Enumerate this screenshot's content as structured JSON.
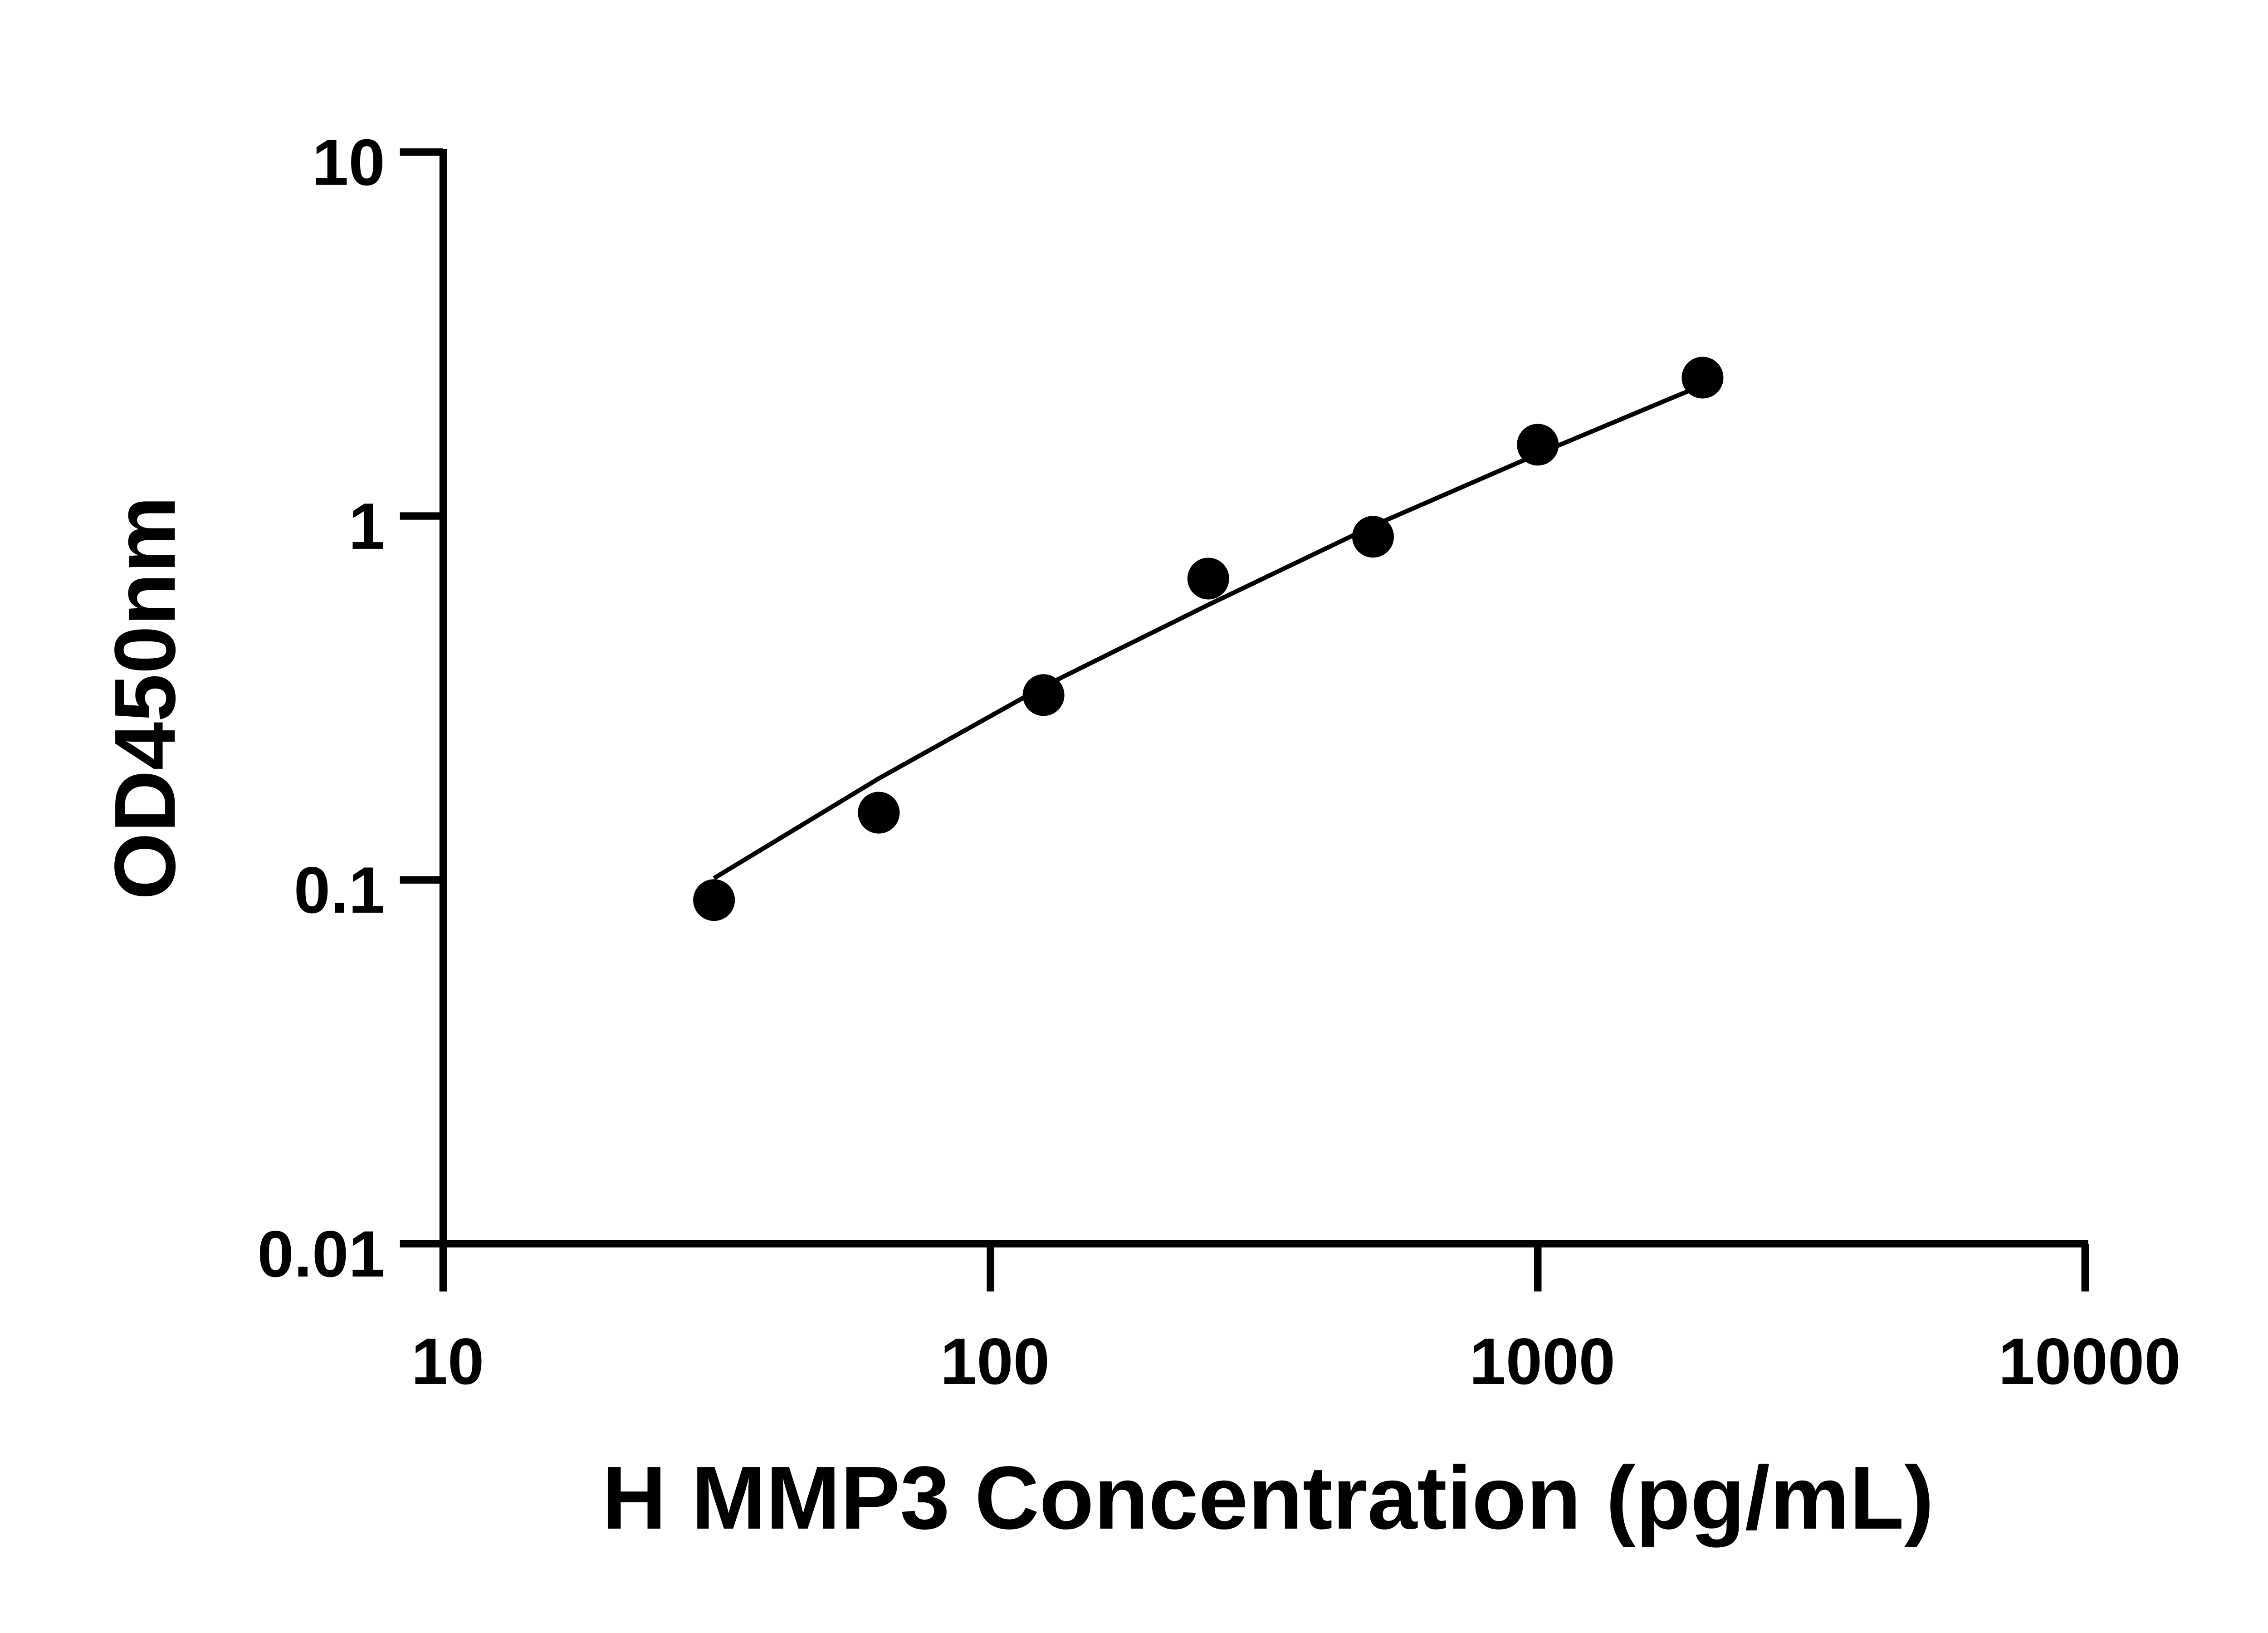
{
  "chart_data": {
    "type": "scatter",
    "title": "",
    "xlabel": "H MMP3 Concentration (pg/mL)",
    "ylabel": "OD450nm",
    "xscale": "log",
    "yscale": "log",
    "xlim": [
      10,
      10000
    ],
    "ylim": [
      0.01,
      10
    ],
    "xticks": [
      "10",
      "100",
      "1000",
      "10000"
    ],
    "yticks": [
      "0.01",
      "0.1",
      "1",
      "10"
    ],
    "grid": false,
    "x": [
      31.25,
      62.5,
      125,
      250,
      500,
      1000,
      2000
    ],
    "y": [
      0.088,
      0.153,
      0.322,
      0.673,
      0.877,
      1.57,
      2.4
    ],
    "fit_curve": {
      "x": [
        31.25,
        62.5,
        125,
        250,
        500,
        1000,
        2000
      ],
      "y": [
        0.101,
        0.19,
        0.34,
        0.57,
        0.94,
        1.48,
        2.29
      ]
    },
    "colors": {
      "points": "#000000",
      "line": "#000000"
    }
  }
}
